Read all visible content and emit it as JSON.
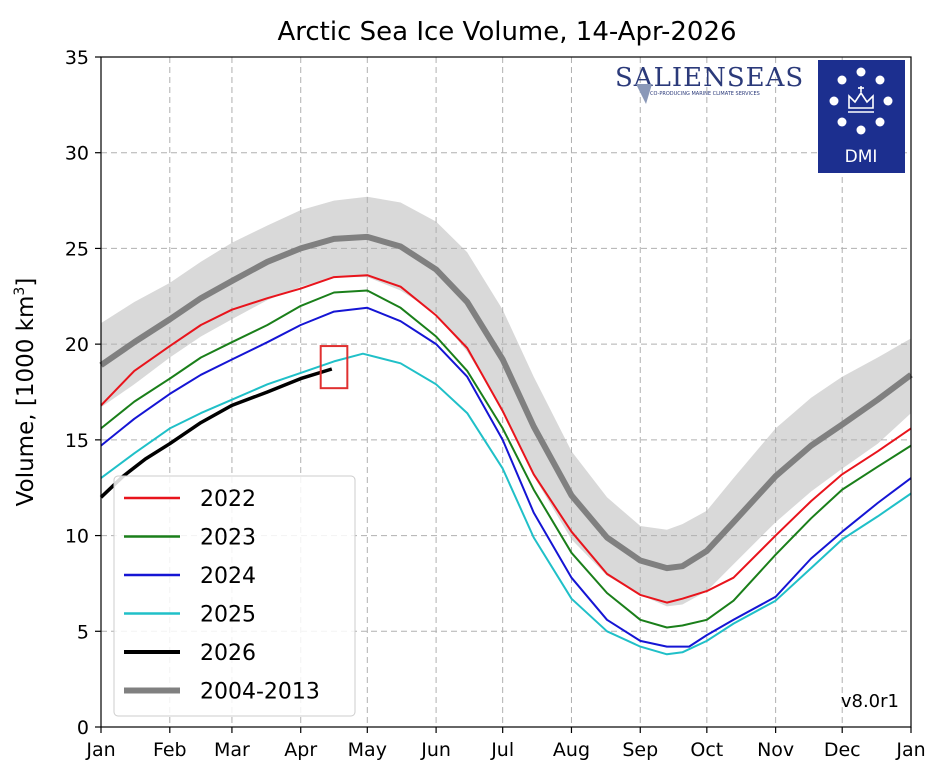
{
  "chart_data": {
    "type": "line",
    "title": "Arctic Sea Ice Volume, 14-Apr-2026",
    "ylabel": "Volume, [1000 km",
    "ylabel_sup": "3",
    "ylabel_close": "]",
    "xlabel": "",
    "ylim": [
      0,
      35
    ],
    "yticks": [
      0,
      5,
      10,
      15,
      20,
      25,
      30,
      35
    ],
    "xlim": [
      0,
      365
    ],
    "xticks": [
      {
        "label": "Jan",
        "day": 0
      },
      {
        "label": "Feb",
        "day": 31
      },
      {
        "label": "Mar",
        "day": 59
      },
      {
        "label": "Apr",
        "day": 90
      },
      {
        "label": "May",
        "day": 120
      },
      {
        "label": "Jun",
        "day": 151
      },
      {
        "label": "Jul",
        "day": 181
      },
      {
        "label": "Aug",
        "day": 212
      },
      {
        "label": "Sep",
        "day": 243
      },
      {
        "label": "Oct",
        "day": 273
      },
      {
        "label": "Nov",
        "day": 304
      },
      {
        "label": "Dec",
        "day": 334
      },
      {
        "label": "Jan",
        "day": 365
      }
    ],
    "grid": true,
    "legend_position": "lower-left",
    "x_unit": "day of year",
    "series": [
      {
        "name": "2022",
        "color": "#e8141c",
        "width": 2,
        "x": [
          0,
          15,
          31,
          45,
          59,
          75,
          90,
          105,
          120,
          135,
          151,
          165,
          181,
          195,
          212,
          228,
          243,
          255,
          262,
          273,
          285,
          304,
          320,
          334,
          350,
          365
        ],
        "y": [
          16.8,
          18.6,
          19.9,
          21.0,
          21.8,
          22.4,
          22.9,
          23.5,
          23.6,
          23.0,
          21.5,
          19.8,
          16.5,
          13.2,
          10.2,
          8.0,
          6.9,
          6.5,
          6.7,
          7.1,
          7.8,
          10.0,
          11.8,
          13.2,
          14.4,
          15.6
        ]
      },
      {
        "name": "2023",
        "color": "#1a7f1a",
        "width": 2,
        "x": [
          0,
          15,
          31,
          45,
          59,
          75,
          90,
          105,
          120,
          135,
          151,
          165,
          181,
          195,
          212,
          228,
          243,
          255,
          262,
          273,
          285,
          304,
          320,
          334,
          350,
          365
        ],
        "y": [
          15.6,
          17.0,
          18.2,
          19.3,
          20.1,
          21.0,
          22.0,
          22.7,
          22.8,
          21.9,
          20.4,
          18.6,
          15.6,
          12.4,
          9.1,
          7.0,
          5.6,
          5.2,
          5.3,
          5.6,
          6.6,
          9.0,
          10.9,
          12.4,
          13.6,
          14.7
        ]
      },
      {
        "name": "2024",
        "color": "#1515d4",
        "width": 2,
        "x": [
          0,
          15,
          31,
          45,
          59,
          75,
          90,
          105,
          120,
          135,
          151,
          165,
          181,
          195,
          212,
          228,
          243,
          255,
          265,
          273,
          285,
          304,
          320,
          334,
          350,
          365
        ],
        "y": [
          14.7,
          16.1,
          17.4,
          18.4,
          19.2,
          20.1,
          21.0,
          21.7,
          21.9,
          21.2,
          20.0,
          18.3,
          15.0,
          11.2,
          7.8,
          5.6,
          4.5,
          4.2,
          4.2,
          4.8,
          5.6,
          6.8,
          8.8,
          10.2,
          11.7,
          13.0
        ]
      },
      {
        "name": "2025",
        "color": "#20c0c8",
        "width": 2,
        "x": [
          0,
          15,
          31,
          45,
          59,
          75,
          90,
          105,
          118,
          135,
          151,
          165,
          181,
          195,
          212,
          228,
          243,
          255,
          262,
          273,
          285,
          304,
          320,
          334,
          350,
          365
        ],
        "y": [
          13.0,
          14.3,
          15.6,
          16.4,
          17.1,
          17.9,
          18.5,
          19.1,
          19.5,
          19.0,
          17.9,
          16.4,
          13.5,
          9.9,
          6.7,
          5.0,
          4.2,
          3.8,
          3.9,
          4.5,
          5.4,
          6.6,
          8.3,
          9.8,
          11.0,
          12.2
        ]
      },
      {
        "name": "2026",
        "color": "#000000",
        "width": 3.5,
        "x": [
          0,
          10,
          20,
          31,
          45,
          59,
          75,
          90,
          104
        ],
        "y": [
          12.0,
          13.1,
          14.0,
          14.8,
          15.9,
          16.8,
          17.5,
          18.2,
          18.7
        ]
      },
      {
        "name": "2004-2013",
        "color": "#808080",
        "width": 6,
        "x": [
          0,
          15,
          31,
          45,
          59,
          75,
          90,
          105,
          120,
          135,
          151,
          165,
          181,
          195,
          212,
          228,
          243,
          255,
          262,
          273,
          285,
          304,
          320,
          334,
          350,
          365
        ],
        "y": [
          18.9,
          20.1,
          21.3,
          22.4,
          23.3,
          24.3,
          25.0,
          25.5,
          25.6,
          25.1,
          23.9,
          22.2,
          19.2,
          15.7,
          12.1,
          9.9,
          8.7,
          8.3,
          8.4,
          9.2,
          10.7,
          13.1,
          14.7,
          15.8,
          17.1,
          18.4
        ]
      }
    ],
    "band": {
      "color": "#d9d9d9",
      "x": [
        0,
        15,
        31,
        45,
        59,
        75,
        90,
        105,
        120,
        135,
        151,
        165,
        181,
        195,
        212,
        228,
        243,
        255,
        262,
        273,
        285,
        304,
        320,
        334,
        350,
        365
      ],
      "upper": [
        21.1,
        22.2,
        23.2,
        24.3,
        25.3,
        26.2,
        27.0,
        27.5,
        27.7,
        27.4,
        26.4,
        24.8,
        21.8,
        18.3,
        14.4,
        12.0,
        10.5,
        10.3,
        10.6,
        11.3,
        13.0,
        15.6,
        17.2,
        18.3,
        19.3,
        20.3
      ],
      "lower": [
        16.7,
        17.9,
        19.3,
        20.4,
        21.3,
        22.3,
        23.0,
        23.5,
        23.5,
        22.8,
        21.6,
        19.6,
        16.6,
        13.1,
        9.8,
        7.9,
        6.9,
        6.3,
        6.4,
        7.1,
        8.5,
        10.7,
        12.3,
        13.5,
        14.8,
        16.4
      ]
    },
    "highlight_box": {
      "color": "#e03030",
      "x": [
        99,
        111
      ],
      "y": [
        17.7,
        19.9
      ]
    },
    "version_label": "v8.0r1"
  },
  "logos": {
    "salienseas": "SALIENSEAS",
    "salienseas_tagline": "CO-PRODUCING MARINE CLIMATE SERVICES",
    "dmi": "DMI",
    "dmi_background": "#1c2f8f"
  }
}
